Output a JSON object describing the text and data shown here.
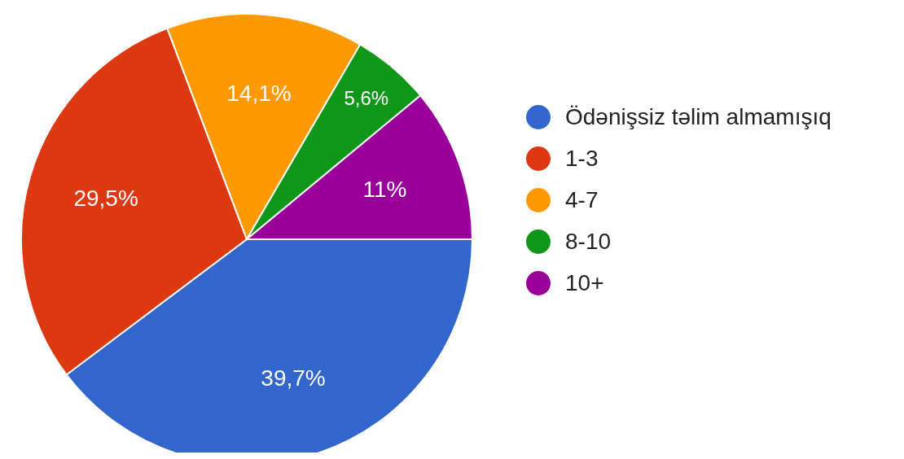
{
  "chart_data": {
    "type": "pie",
    "categories": [
      "Ödənişsiz təlim almamışıq",
      "1-3",
      "4-7",
      "8-10",
      "10+"
    ],
    "values": [
      39.7,
      29.5,
      14.1,
      5.6,
      11
    ],
    "colors": [
      "#3366cc",
      "#dc3912",
      "#ff9900",
      "#109618",
      "#990099"
    ],
    "value_labels": [
      "39,7%",
      "29,5%",
      "14,1%",
      "5,6%",
      "11%"
    ],
    "legend": "right"
  }
}
